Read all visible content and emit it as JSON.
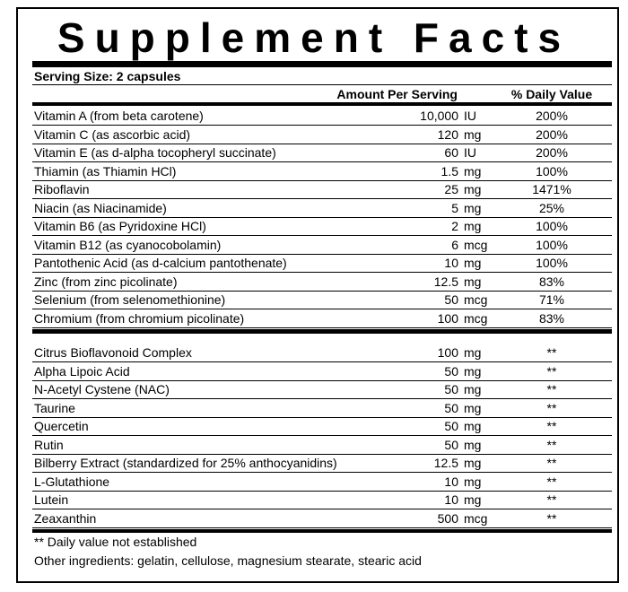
{
  "title": "Supplement Facts",
  "serving_size": "Serving Size: 2 capsules",
  "headers": {
    "amount": "Amount Per Serving",
    "daily_value": "% Daily Value"
  },
  "groups": [
    {
      "rows": [
        {
          "name": "Vitamin A (from beta carotene)",
          "amount": "10,000",
          "unit": "IU",
          "dv": "200%"
        },
        {
          "name": "Vitamin C (as ascorbic acid)",
          "amount": "120",
          "unit": "mg",
          "dv": "200%"
        },
        {
          "name": "Vitamin E (as d-alpha tocopheryl succinate)",
          "amount": "60",
          "unit": "IU",
          "dv": "200%"
        },
        {
          "name": "Thiamin (as Thiamin HCl)",
          "amount": "1.5",
          "unit": "mg",
          "dv": "100%"
        },
        {
          "name": "Riboflavin",
          "amount": "25",
          "unit": "mg",
          "dv": "1471%"
        },
        {
          "name": "Niacin (as Niacinamide)",
          "amount": "5",
          "unit": "mg",
          "dv": "25%"
        },
        {
          "name": "Vitamin B6 (as Pyridoxine HCl)",
          "amount": "2",
          "unit": "mg",
          "dv": "100%"
        },
        {
          "name": "Vitamin B12 (as cyanocobolamin)",
          "amount": "6",
          "unit": "mcg",
          "dv": "100%"
        },
        {
          "name": "Pantothenic Acid (as d-calcium pantothenate)",
          "amount": "10",
          "unit": "mg",
          "dv": "100%"
        },
        {
          "name": "Zinc (from zinc picolinate)",
          "amount": "12.5",
          "unit": "mg",
          "dv": "83%"
        },
        {
          "name": "Selenium (from selenomethionine)",
          "amount": "50",
          "unit": "mcg",
          "dv": "71%"
        },
        {
          "name": "Chromium (from chromium picolinate)",
          "amount": "100",
          "unit": "mcg",
          "dv": "83%"
        }
      ]
    },
    {
      "rows": [
        {
          "name": "Citrus Bioflavonoid Complex",
          "amount": "100",
          "unit": "mg",
          "dv": "**"
        },
        {
          "name": "Alpha Lipoic Acid",
          "amount": "50",
          "unit": "mg",
          "dv": "**"
        },
        {
          "name": "N-Acetyl Cystene (NAC)",
          "amount": "50",
          "unit": "mg",
          "dv": "**"
        },
        {
          "name": "Taurine",
          "amount": "50",
          "unit": "mg",
          "dv": "**"
        },
        {
          "name": "Quercetin",
          "amount": "50",
          "unit": "mg",
          "dv": "**"
        },
        {
          "name": "Rutin",
          "amount": "50",
          "unit": "mg",
          "dv": "**"
        },
        {
          "name": "Bilberry Extract (standardized for 25% anthocyanidins)",
          "amount": "12.5",
          "unit": "mg",
          "dv": "**"
        },
        {
          "name": "L-Glutathione",
          "amount": "10",
          "unit": "mg",
          "dv": "**"
        },
        {
          "name": "Lutein",
          "amount": "10",
          "unit": "mg",
          "dv": "**"
        },
        {
          "name": "Zeaxanthin",
          "amount": "500",
          "unit": "mcg",
          "dv": "**"
        }
      ]
    }
  ],
  "footnotes": [
    "** Daily value not established",
    "Other ingredients: gelatin, cellulose, magnesium stearate, stearic acid"
  ]
}
